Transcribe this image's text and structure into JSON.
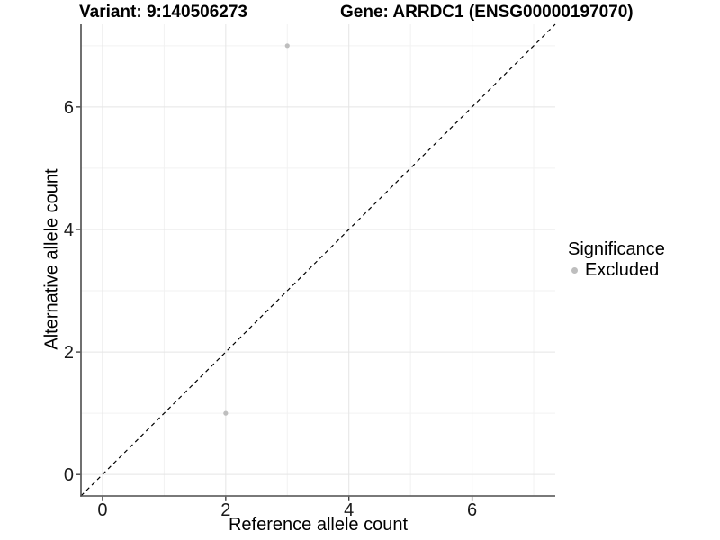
{
  "header": {
    "variant_title": "Variant: 9:140506273",
    "gene_title": "Gene: ARRDC1 (ENSG00000197070)"
  },
  "legend": {
    "title": "Significance",
    "items": [
      {
        "label": "Excluded",
        "color": "#bebebe",
        "marker": "circle"
      }
    ],
    "position": "right"
  },
  "chart_data": {
    "type": "scatter",
    "title": "Variant: 9:140506273    Gene: ARRDC1 (ENSG00000197070)",
    "xlabel": "Reference allele count",
    "ylabel": "Alternative allele count",
    "xlim": [
      -0.35,
      7.35
    ],
    "ylim": [
      -0.35,
      7.35
    ],
    "x_major_ticks": [
      0,
      2,
      4,
      6
    ],
    "y_major_ticks": [
      0,
      2,
      4,
      6
    ],
    "x_minor_ticks": [
      1,
      3,
      5,
      7
    ],
    "y_minor_ticks": [
      1,
      3,
      5,
      7
    ],
    "grid": true,
    "legend_position": "right",
    "series": [
      {
        "name": "Excluded",
        "color": "#bebebe",
        "marker": "circle",
        "points": [
          {
            "x": 2,
            "y": 1
          },
          {
            "x": 3,
            "y": 7
          }
        ]
      }
    ],
    "reference_line": {
      "type": "identity",
      "label": "y = x",
      "style": "dashed",
      "color": "#000000"
    },
    "colors": {
      "background": "#ffffff",
      "grid_major": "#e5e5e5",
      "grid_minor": "#f2f2f2",
      "axis_line": "#4d4d4d",
      "tick_mark": "#333333",
      "tick_label": "#1a1a1a",
      "point": "#bebebe"
    }
  }
}
